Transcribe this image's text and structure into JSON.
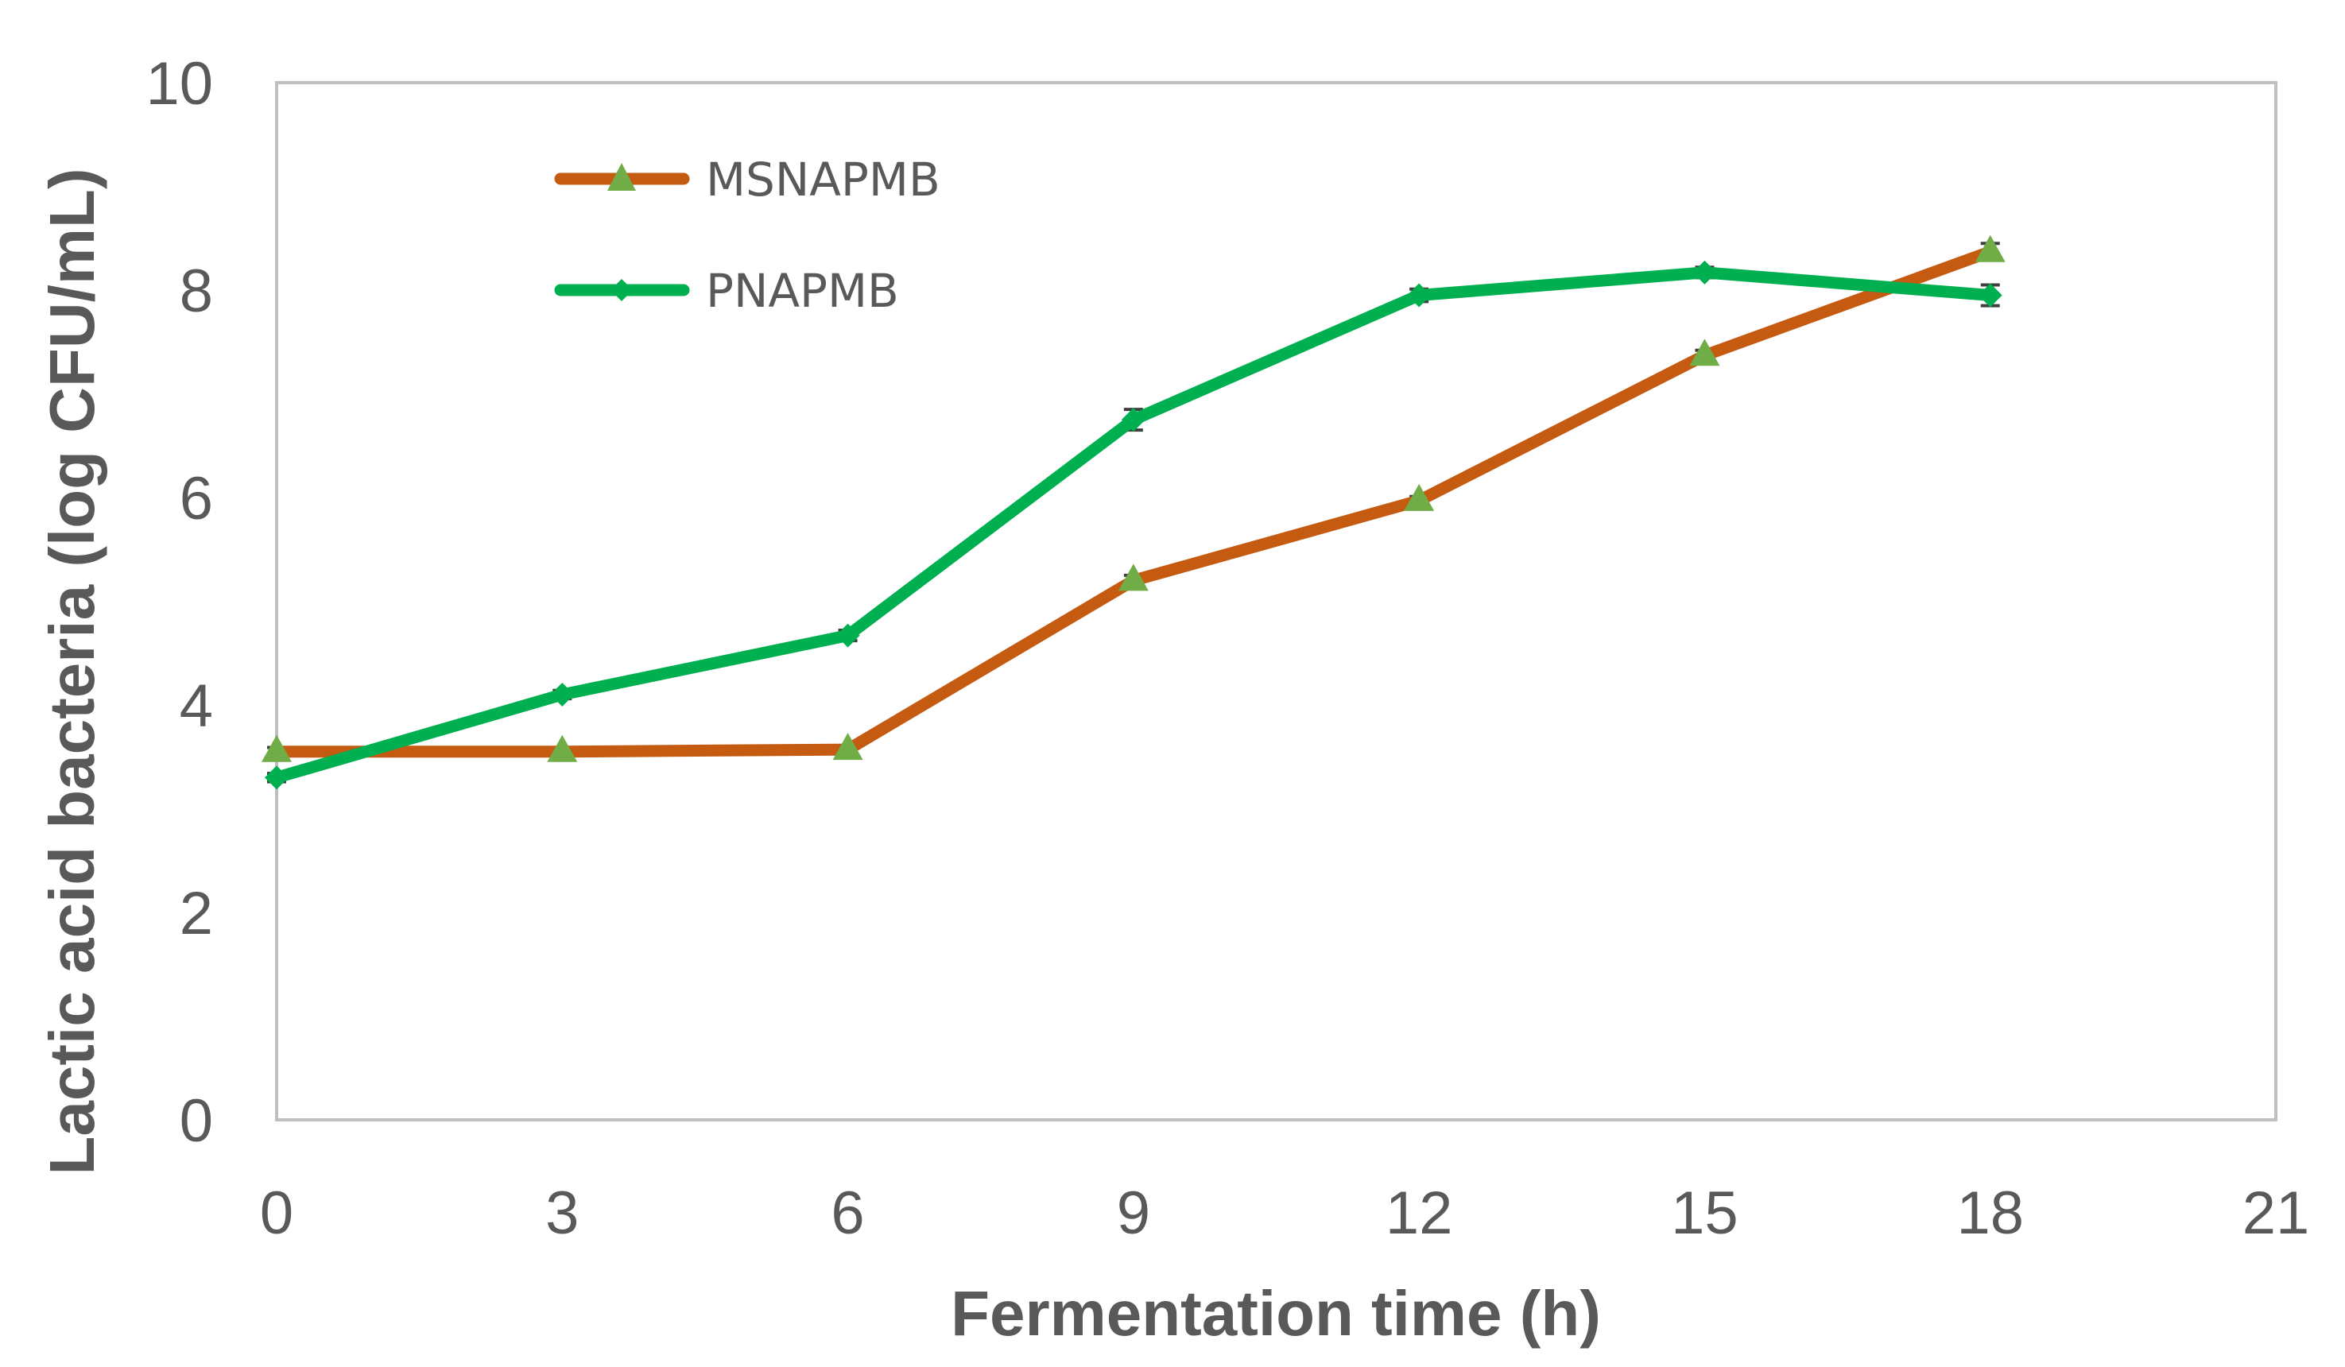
{
  "chart_data": {
    "type": "line",
    "title": "",
    "xlabel": "Fermentation time (h)",
    "ylabel": "Lactic acid bacteria (log CFU/mL)",
    "xlim": [
      0,
      21
    ],
    "ylim": [
      0,
      10
    ],
    "x_ticks": [
      0,
      3,
      6,
      9,
      12,
      15,
      18,
      21
    ],
    "x_tick_labels": [
      "0",
      "3",
      "6",
      "9",
      "12",
      "15",
      "18",
      "21"
    ],
    "y_ticks": [
      0,
      2,
      4,
      6,
      8,
      10
    ],
    "y_tick_labels": [
      "0",
      "2",
      "4",
      "6",
      "8",
      "10"
    ],
    "grid": false,
    "legend_position": "top-left",
    "x": [
      0,
      3,
      6,
      9,
      12,
      15,
      18
    ],
    "series": [
      {
        "name": "MSNAPMB",
        "values": [
          3.55,
          3.55,
          3.57,
          5.2,
          5.97,
          7.37,
          8.37
        ],
        "errors": [
          0.04,
          0.03,
          0.04,
          0.05,
          0.04,
          0.05,
          0.08
        ],
        "line_color": "#C55A11",
        "marker": "triangle",
        "marker_color": "#70AD47"
      },
      {
        "name": "PNAPMB",
        "values": [
          3.3,
          4.1,
          4.67,
          6.75,
          7.95,
          8.17,
          7.95
        ],
        "errors": [
          0.04,
          0.04,
          0.05,
          0.1,
          0.06,
          0.05,
          0.1
        ],
        "line_color": "#00B050",
        "marker": "diamond",
        "marker_color": "#00B050"
      }
    ]
  }
}
